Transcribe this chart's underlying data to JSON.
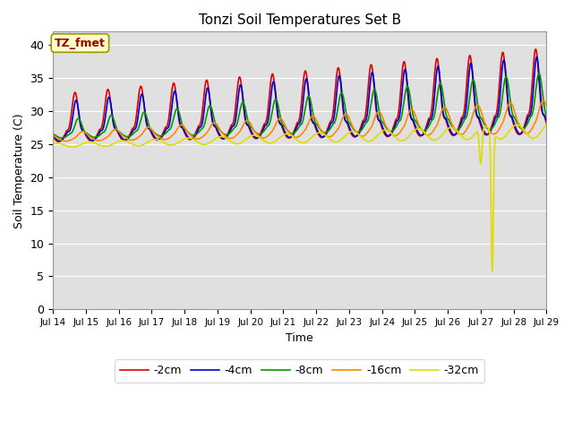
{
  "title": "Tonzi Soil Temperatures Set B",
  "xlabel": "Time",
  "ylabel": "Soil Temperature (C)",
  "annotation": "TZ_fmet",
  "ylim": [
    0,
    42
  ],
  "yticks": [
    0,
    5,
    10,
    15,
    20,
    25,
    30,
    35,
    40
  ],
  "series_colors": [
    "#dd0000",
    "#0000cc",
    "#009900",
    "#ff8800",
    "#dddd00"
  ],
  "series_labels": [
    "-2cm",
    "-4cm",
    "-8cm",
    "-16cm",
    "-32cm"
  ],
  "bg_color": "#e0e0e0",
  "linewidth": 1.2,
  "x_start_day": 14,
  "x_end_day": 29,
  "x_tick_days": [
    14,
    15,
    16,
    17,
    18,
    19,
    20,
    21,
    22,
    23,
    24,
    25,
    26,
    27,
    28,
    29
  ]
}
